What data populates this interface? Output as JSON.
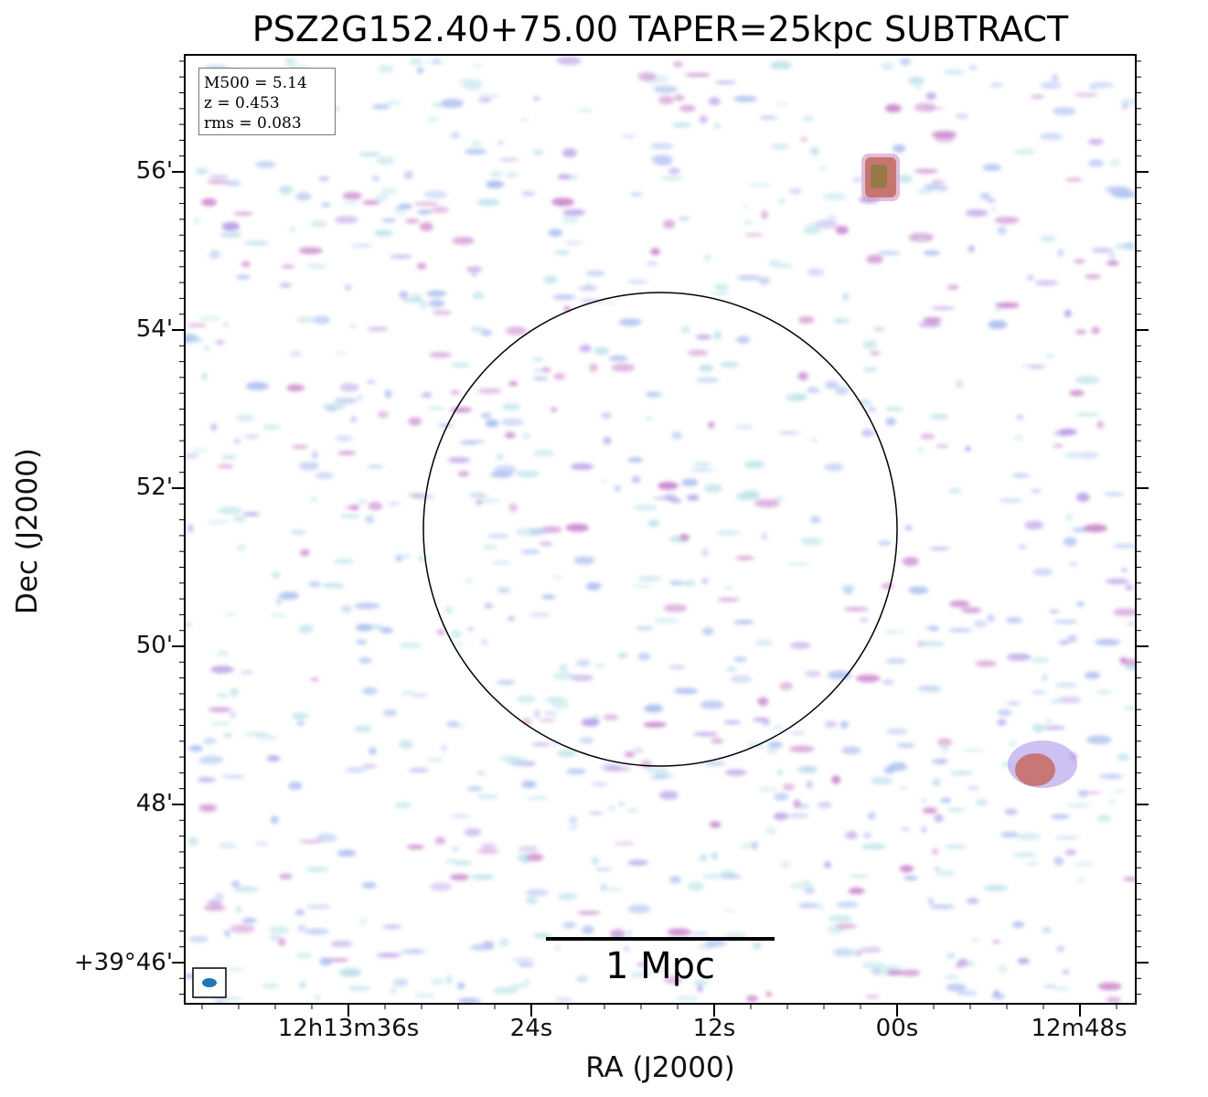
{
  "title": "PSZ2G152.40+75.00 TAPER=25kpc SUBTRACT",
  "xlabel": "RA (J2000)",
  "ylabel": "Dec (J2000)",
  "y_ticks": [
    "56'",
    "54'",
    "52'",
    "50'",
    "48'",
    "+39°46'"
  ],
  "x_ticks": [
    "12h13m36s",
    "24s",
    "12s",
    "00s",
    "12m48s"
  ],
  "info": {
    "m500": "M500 = 5.14",
    "z": "z = 0.453",
    "rms": "rms = 0.083"
  },
  "scale_bar": "1 Mpc",
  "colors": {
    "noise_light": "#bfe3ea",
    "noise_blue": "#a9bdf0",
    "noise_violet": "#b69ae6",
    "source_magenta": "#c77fc9",
    "source_red": "#c96a62",
    "beam": "#1f77b4"
  }
}
